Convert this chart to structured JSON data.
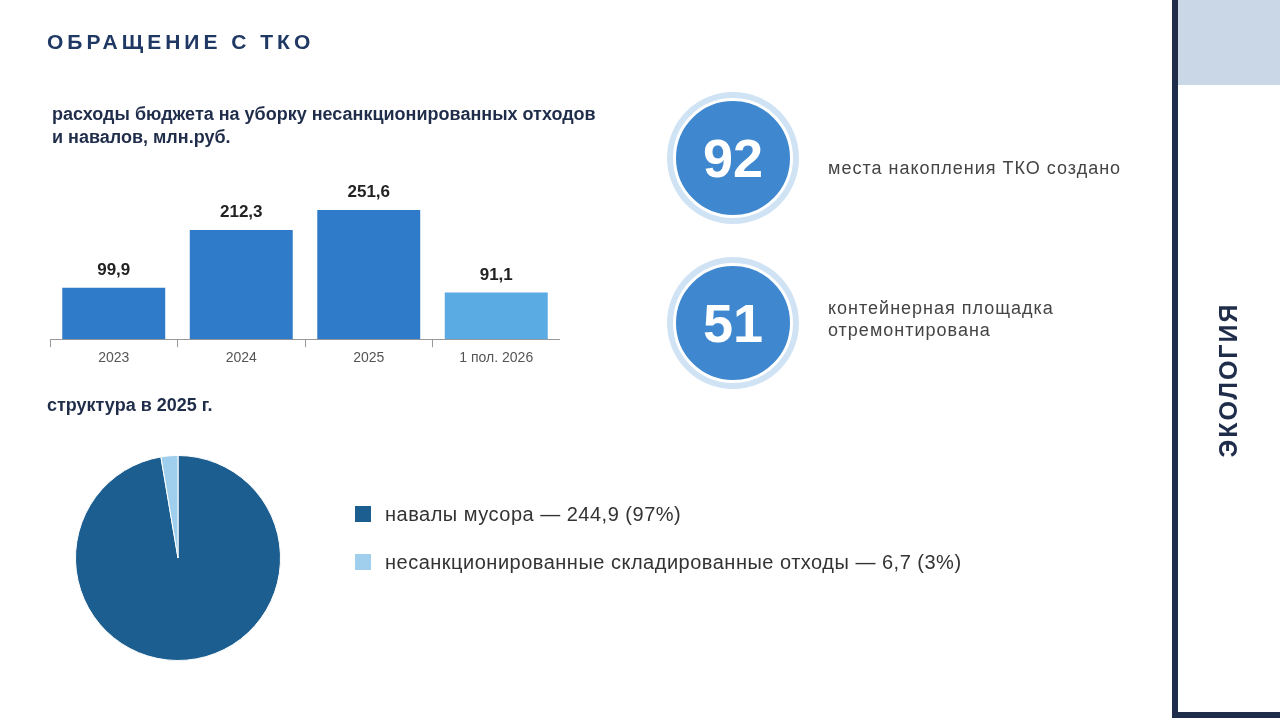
{
  "chart_data": [
    {
      "type": "other",
      "title": "ОБРАЩЕНИЕ С ТКО",
      "annotations": [
        "ЭКОЛОГИЯ"
      ]
    },
    {
      "type": "bar",
      "title": "расходы бюджета на уборку несанкционированных отходов и навалов, млн.руб.",
      "categories": [
        "2023",
        "2024",
        "2025",
        "1 пол. 2026"
      ],
      "values": [
        99.9,
        212.3,
        251.6,
        91.1
      ],
      "colors": [
        "#2f7bc9",
        "#2f7bc9",
        "#2f7bc9",
        "#5aaae4"
      ],
      "value_labels": [
        "99,9",
        "212,3",
        "251,6",
        "91,1"
      ]
    },
    {
      "type": "other",
      "annotations": [
        "92",
        "места накопления ТКО создано",
        "51",
        "контейнерная площадка отремонтирована"
      ]
    },
    {
      "type": "pie",
      "title": "структура в 2025 г.",
      "categories": [
        "навалы мусора — 244,9 (97%)",
        "несанкционированные складированные отходы — 6,7 (3%)"
      ],
      "values": [
        244.9,
        6.7
      ],
      "colors": [
        "#1b5e8f",
        "#9fcfec"
      ],
      "legend": "right"
    }
  ]
}
